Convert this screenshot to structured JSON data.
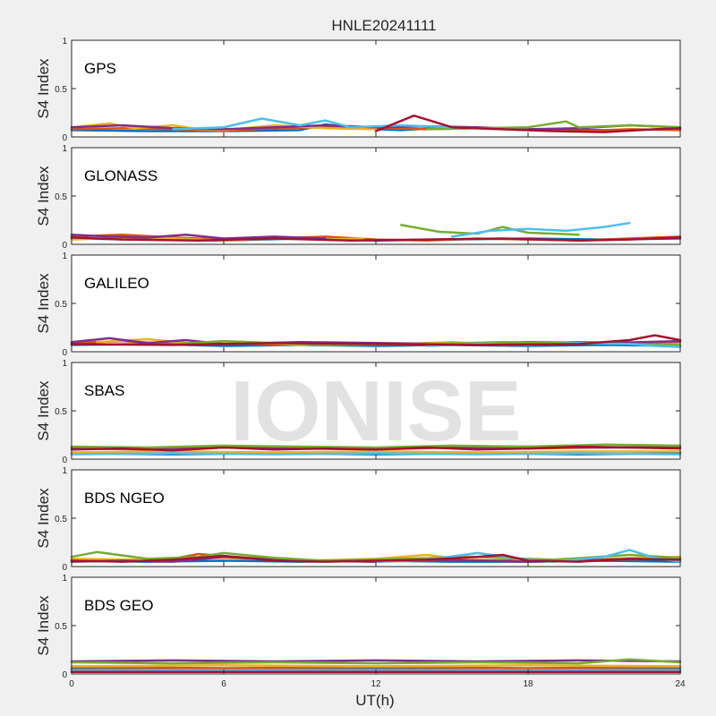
{
  "figure_title": "HNLE20241111",
  "watermark": "IONISE",
  "colors": [
    "#0072bd",
    "#d95319",
    "#edb120",
    "#7e2f8e",
    "#77ac30",
    "#4dbeee",
    "#a2142f"
  ],
  "chart_data": [
    {
      "type": "line",
      "panel": "GPS",
      "ylabel": "S4 Index",
      "ylim": [
        0,
        1
      ],
      "yticks": [
        "0",
        "0.5",
        "1"
      ],
      "xlim": [
        0,
        24
      ],
      "series": [
        {
          "color": "#0072bd",
          "x": [
            0,
            3,
            6,
            9,
            10,
            12,
            13,
            15,
            18,
            21,
            24
          ],
          "y": [
            0.07,
            0.06,
            0.06,
            0.07,
            0.13,
            0.08,
            0.07,
            0.1,
            0.08,
            0.07,
            0.08
          ]
        },
        {
          "color": "#d95319",
          "x": [
            0,
            2,
            4,
            6,
            8,
            10,
            12,
            14,
            16,
            18,
            20,
            22,
            24
          ],
          "y": [
            0.08,
            0.09,
            0.08,
            0.06,
            0.09,
            0.1,
            0.09,
            0.08,
            0.09,
            0.07,
            0.06,
            0.08,
            0.07
          ]
        },
        {
          "color": "#edb120",
          "x": [
            0,
            1.5,
            2.5,
            4,
            5,
            6,
            8,
            10,
            12
          ],
          "y": [
            0.1,
            0.14,
            0.09,
            0.12,
            0.08,
            0.07,
            0.12,
            0.09,
            0.08
          ]
        },
        {
          "color": "#7e2f8e",
          "x": [
            0,
            2,
            4,
            6,
            8,
            10,
            12,
            14,
            16,
            18,
            20,
            22,
            24
          ],
          "y": [
            0.1,
            0.12,
            0.09,
            0.08,
            0.1,
            0.12,
            0.1,
            0.11,
            0.1,
            0.08,
            0.09,
            0.12,
            0.1
          ]
        },
        {
          "color": "#77ac30",
          "x": [
            14,
            16,
            18,
            19.5,
            20,
            22,
            24
          ],
          "y": [
            0.08,
            0.09,
            0.1,
            0.16,
            0.1,
            0.12,
            0.1
          ]
        },
        {
          "color": "#4dbeee",
          "x": [
            4,
            6,
            7.5,
            9,
            10,
            11,
            13,
            15,
            17
          ],
          "y": [
            0.08,
            0.1,
            0.19,
            0.12,
            0.17,
            0.1,
            0.12,
            0.1,
            0.08
          ]
        },
        {
          "color": "#a2142f",
          "x": [
            12,
            13.5,
            15,
            17,
            19,
            21,
            23,
            24
          ],
          "y": [
            0.06,
            0.22,
            0.1,
            0.08,
            0.06,
            0.05,
            0.08,
            0.09
          ]
        }
      ]
    },
    {
      "type": "line",
      "panel": "GLONASS",
      "ylabel": "S4 Index",
      "ylim": [
        0,
        1
      ],
      "yticks": [
        "0",
        "0.5",
        "1"
      ],
      "xlim": [
        0,
        24
      ],
      "series": [
        {
          "color": "#0072bd",
          "x": [
            0,
            3,
            6,
            9,
            12,
            15,
            18,
            21,
            24
          ],
          "y": [
            0.06,
            0.05,
            0.04,
            0.06,
            0.04,
            0.05,
            0.06,
            0.05,
            0.06
          ]
        },
        {
          "color": "#d95319",
          "x": [
            0,
            2,
            4,
            6,
            8,
            10,
            12,
            14,
            16,
            18,
            20,
            22,
            24
          ],
          "y": [
            0.08,
            0.1,
            0.07,
            0.05,
            0.06,
            0.08,
            0.05,
            0.04,
            0.06,
            0.05,
            0.04,
            0.06,
            0.08
          ]
        },
        {
          "color": "#edb120",
          "x": [
            0,
            2,
            4,
            6,
            8,
            10,
            11.5
          ],
          "y": [
            0.05,
            0.07,
            0.06,
            0.04,
            0.06,
            0.05,
            0.06
          ]
        },
        {
          "color": "#7e2f8e",
          "x": [
            0,
            1.5,
            3,
            4.5,
            6,
            8,
            10
          ],
          "y": [
            0.1,
            0.08,
            0.07,
            0.1,
            0.06,
            0.08,
            0.06
          ]
        },
        {
          "color": "#77ac30",
          "x": [
            13,
            14.5,
            16,
            17,
            18,
            20
          ],
          "y": [
            0.2,
            0.13,
            0.11,
            0.18,
            0.12,
            0.1
          ]
        },
        {
          "color": "#4dbeee",
          "x": [
            15,
            16.5,
            18,
            19.5,
            21,
            22
          ],
          "y": [
            0.08,
            0.14,
            0.16,
            0.14,
            0.18,
            0.22
          ]
        },
        {
          "color": "#a2142f",
          "x": [
            0,
            2,
            5,
            8,
            11,
            14,
            17,
            20,
            22,
            24
          ],
          "y": [
            0.07,
            0.05,
            0.04,
            0.06,
            0.04,
            0.05,
            0.06,
            0.04,
            0.05,
            0.07
          ]
        }
      ]
    },
    {
      "type": "line",
      "panel": "GALILEO",
      "ylabel": "S4 Index",
      "ylim": [
        0,
        1
      ],
      "yticks": [
        "0",
        "0.5",
        "1"
      ],
      "xlim": [
        0,
        24
      ],
      "series": [
        {
          "color": "#0072bd",
          "x": [
            0,
            3,
            6,
            9,
            12,
            15,
            18,
            21,
            24
          ],
          "y": [
            0.07,
            0.08,
            0.06,
            0.07,
            0.06,
            0.07,
            0.06,
            0.07,
            0.06
          ]
        },
        {
          "color": "#d95319",
          "x": [
            0,
            2,
            4,
            6,
            8,
            10,
            12,
            14,
            16,
            18,
            20,
            22,
            24
          ],
          "y": [
            0.09,
            0.11,
            0.08,
            0.1,
            0.07,
            0.09,
            0.08,
            0.07,
            0.09,
            0.08,
            0.1,
            0.09,
            0.1
          ]
        },
        {
          "color": "#edb120",
          "x": [
            1,
            3,
            5,
            7,
            9,
            11,
            13,
            15,
            17,
            19,
            21
          ],
          "y": [
            0.1,
            0.13,
            0.08,
            0.1,
            0.07,
            0.09,
            0.08,
            0.1,
            0.07,
            0.08,
            0.09
          ]
        },
        {
          "color": "#7e2f8e",
          "x": [
            0,
            1.5,
            3,
            4.5,
            6,
            9,
            12,
            15,
            18,
            21,
            24
          ],
          "y": [
            0.1,
            0.14,
            0.09,
            0.12,
            0.08,
            0.1,
            0.09,
            0.08,
            0.1,
            0.09,
            0.11
          ]
        },
        {
          "color": "#77ac30",
          "x": [
            4,
            6,
            8,
            10,
            14,
            17,
            20,
            22,
            24
          ],
          "y": [
            0.08,
            0.11,
            0.09,
            0.07,
            0.08,
            0.1,
            0.09,
            0.08,
            0.07
          ]
        },
        {
          "color": "#4dbeee",
          "x": [
            14,
            16,
            18,
            20,
            22,
            23,
            24
          ],
          "y": [
            0.06,
            0.08,
            0.07,
            0.09,
            0.08,
            0.06,
            0.05
          ]
        },
        {
          "color": "#a2142f",
          "x": [
            0,
            4,
            8,
            12,
            16,
            20,
            22,
            23,
            24
          ],
          "y": [
            0.08,
            0.07,
            0.09,
            0.08,
            0.07,
            0.08,
            0.12,
            0.17,
            0.12
          ]
        }
      ]
    },
    {
      "type": "line",
      "panel": "SBAS",
      "ylabel": "S4 Index",
      "ylim": [
        0,
        1
      ],
      "yticks": [
        "0",
        "0.5",
        "1"
      ],
      "xlim": [
        0,
        24
      ],
      "series": [
        {
          "color": "#0072bd",
          "x": [
            0,
            4,
            8,
            12,
            16,
            20,
            24
          ],
          "y": [
            0.06,
            0.05,
            0.06,
            0.05,
            0.06,
            0.05,
            0.06
          ]
        },
        {
          "color": "#d95319",
          "x": [
            0,
            3,
            6,
            9,
            12,
            15,
            18,
            21,
            24
          ],
          "y": [
            0.11,
            0.1,
            0.12,
            0.11,
            0.1,
            0.12,
            0.11,
            0.12,
            0.13
          ]
        },
        {
          "color": "#edb120",
          "x": [
            0,
            4,
            8,
            12,
            16,
            20,
            24
          ],
          "y": [
            0.07,
            0.08,
            0.07,
            0.08,
            0.07,
            0.08,
            0.08
          ]
        },
        {
          "color": "#7e2f8e",
          "x": [
            0,
            3,
            6,
            9,
            12,
            15,
            18,
            21,
            24
          ],
          "y": [
            0.12,
            0.11,
            0.13,
            0.12,
            0.11,
            0.12,
            0.13,
            0.12,
            0.12
          ]
        },
        {
          "color": "#77ac30",
          "x": [
            0,
            3,
            6,
            9,
            12,
            15,
            18,
            21,
            24
          ],
          "y": [
            0.13,
            0.12,
            0.14,
            0.13,
            0.12,
            0.14,
            0.13,
            0.15,
            0.14
          ]
        },
        {
          "color": "#4dbeee",
          "x": [
            0,
            4,
            8,
            12,
            16,
            20,
            24
          ],
          "y": [
            0.05,
            0.06,
            0.05,
            0.06,
            0.05,
            0.06,
            0.05
          ]
        },
        {
          "color": "#a2142f",
          "x": [
            0,
            2,
            4,
            6,
            8,
            10,
            12,
            14,
            16,
            18,
            20,
            22,
            24
          ],
          "y": [
            0.1,
            0.11,
            0.09,
            0.12,
            0.1,
            0.11,
            0.1,
            0.12,
            0.1,
            0.11,
            0.13,
            0.12,
            0.11
          ]
        }
      ]
    },
    {
      "type": "line",
      "panel": "BDS NGEO",
      "ylabel": "S4 Index",
      "ylim": [
        0,
        1
      ],
      "yticks": [
        "0",
        "0.5",
        "1"
      ],
      "xlim": [
        0,
        24
      ],
      "series": [
        {
          "color": "#0072bd",
          "x": [
            0,
            3,
            6,
            9,
            12,
            15,
            18,
            21,
            24
          ],
          "y": [
            0.06,
            0.05,
            0.06,
            0.05,
            0.06,
            0.05,
            0.05,
            0.06,
            0.05
          ]
        },
        {
          "color": "#d95319",
          "x": [
            0,
            2,
            4,
            5,
            7,
            9,
            12,
            15,
            18,
            21,
            24
          ],
          "y": [
            0.07,
            0.06,
            0.08,
            0.13,
            0.09,
            0.06,
            0.05,
            0.07,
            0.06,
            0.07,
            0.08
          ]
        },
        {
          "color": "#edb120",
          "x": [
            0,
            3,
            6,
            9,
            12,
            14,
            15,
            16,
            18,
            21,
            24
          ],
          "y": [
            0.08,
            0.07,
            0.09,
            0.06,
            0.08,
            0.12,
            0.09,
            0.14,
            0.06,
            0.08,
            0.1
          ]
        },
        {
          "color": "#7e2f8e",
          "x": [
            0,
            2,
            4,
            6,
            8,
            10,
            12,
            14,
            16,
            18,
            20,
            22,
            24
          ],
          "y": [
            0.05,
            0.06,
            0.05,
            0.1,
            0.07,
            0.06,
            0.05,
            0.07,
            0.06,
            0.05,
            0.06,
            0.08,
            0.07
          ]
        },
        {
          "color": "#77ac30",
          "x": [
            0,
            1,
            3,
            5,
            6,
            8,
            10,
            13,
            16,
            19,
            22,
            24
          ],
          "y": [
            0.1,
            0.15,
            0.08,
            0.1,
            0.14,
            0.09,
            0.06,
            0.08,
            0.1,
            0.07,
            0.12,
            0.09
          ]
        },
        {
          "color": "#4dbeee",
          "x": [
            12,
            14,
            16,
            18,
            19,
            21,
            22,
            23,
            24
          ],
          "y": [
            0.05,
            0.07,
            0.14,
            0.07,
            0.05,
            0.1,
            0.17,
            0.09,
            0.05
          ]
        },
        {
          "color": "#a2142f",
          "x": [
            0,
            2,
            4,
            6,
            8,
            10,
            12,
            14,
            16,
            17,
            18,
            20,
            22,
            24
          ],
          "y": [
            0.06,
            0.05,
            0.07,
            0.11,
            0.06,
            0.05,
            0.06,
            0.07,
            0.1,
            0.12,
            0.06,
            0.05,
            0.08,
            0.07
          ]
        }
      ]
    },
    {
      "type": "line",
      "panel": "BDS GEO",
      "ylabel": "S4 Index",
      "ylim": [
        0,
        1
      ],
      "yticks": [
        "0",
        "0.5",
        "1"
      ],
      "xlim": [
        0,
        24
      ],
      "xticks": [
        "0",
        "6",
        "12",
        "18",
        "24"
      ],
      "xlabel": "UT(h)",
      "series": [
        {
          "color": "#0072bd",
          "x": [
            0,
            24
          ],
          "y": [
            0.05,
            0.05
          ]
        },
        {
          "color": "#d95319",
          "x": [
            0,
            6,
            12,
            18,
            24
          ],
          "y": [
            0.07,
            0.06,
            0.07,
            0.06,
            0.07
          ]
        },
        {
          "color": "#edb120",
          "x": [
            0,
            6,
            12,
            18,
            24
          ],
          "y": [
            0.08,
            0.09,
            0.08,
            0.09,
            0.08
          ]
        },
        {
          "color": "#7e2f8e",
          "x": [
            0,
            4,
            8,
            12,
            16,
            20,
            24
          ],
          "y": [
            0.13,
            0.14,
            0.13,
            0.14,
            0.13,
            0.14,
            0.13
          ]
        },
        {
          "color": "#77ac30",
          "x": [
            0,
            4,
            8,
            12,
            16,
            20,
            22,
            24
          ],
          "y": [
            0.12,
            0.11,
            0.12,
            0.11,
            0.12,
            0.11,
            0.15,
            0.12
          ]
        },
        {
          "color": "#4dbeee",
          "x": [
            0,
            24
          ],
          "y": [
            0.04,
            0.04
          ]
        },
        {
          "color": "#a2142f",
          "x": [
            0,
            24
          ],
          "y": [
            0.02,
            0.02
          ]
        }
      ]
    }
  ]
}
